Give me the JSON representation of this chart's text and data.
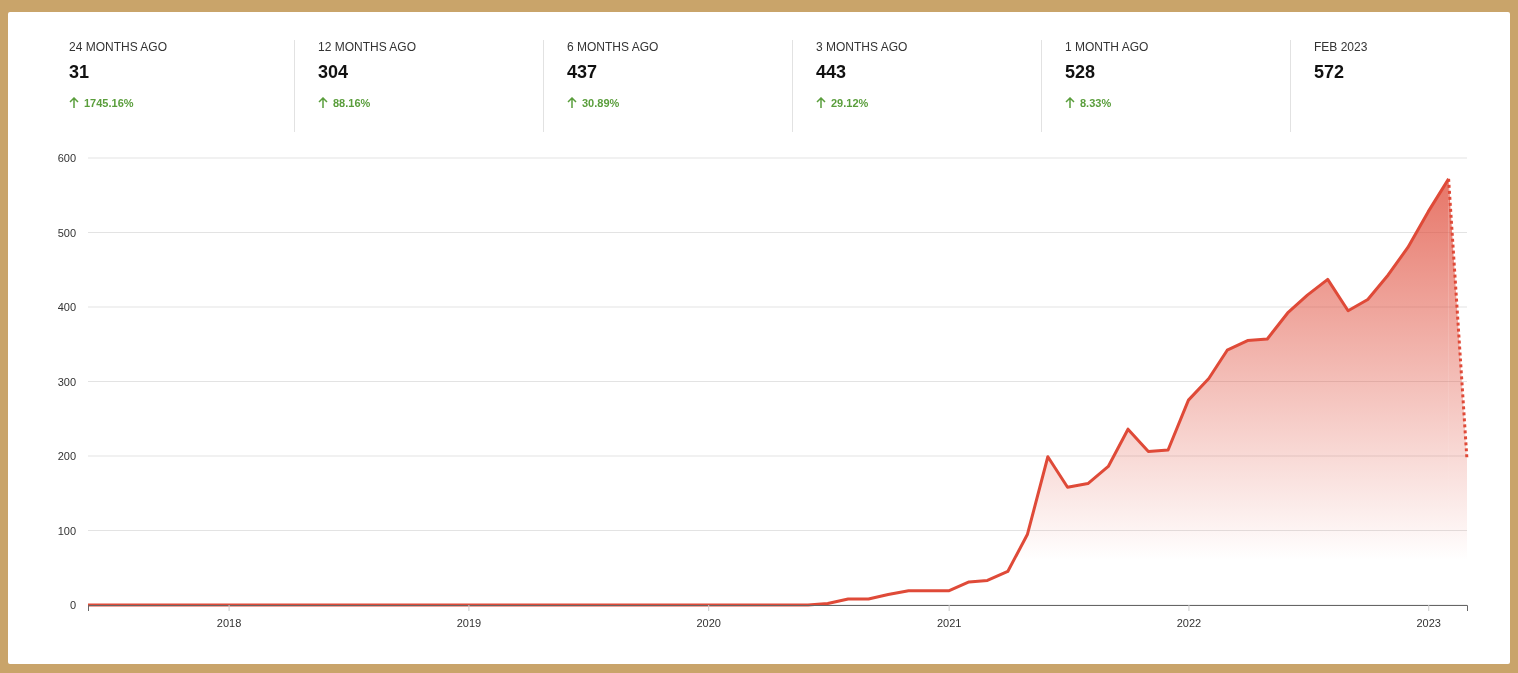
{
  "chart_data": [
    {
      "type": "other",
      "categories": [
        "24 MONTHS AGO",
        "12 MONTHS AGO",
        "6 MONTHS AGO",
        "3 MONTHS AGO",
        "1 MONTH AGO",
        "FEB 2023"
      ],
      "annotations": [
        "31",
        "304",
        "437",
        "443",
        "528",
        "572",
        "1745.16%",
        "88.16%",
        "30.89%",
        "29.12%",
        "8.33%"
      ],
      "color": "#5a9e3c"
    },
    {
      "type": "area",
      "xlim": [
        "2017-06",
        "2023-03"
      ],
      "xticks": [
        "2018",
        "2019",
        "2020",
        "2021",
        "2022",
        "2023"
      ],
      "ylim": [
        0,
        600
      ],
      "yticks": [
        0,
        100,
        200,
        300,
        400,
        500,
        600
      ],
      "grid": "y",
      "marker": "none",
      "series": [
        {
          "color": "#df4a38",
          "line_style": "solid",
          "x": [
            "2017-06",
            "2017-07",
            "2017-08",
            "2017-09",
            "2017-10",
            "2017-11",
            "2017-12",
            "2018-01",
            "2018-02",
            "2018-03",
            "2018-04",
            "2018-05",
            "2018-06",
            "2018-07",
            "2018-08",
            "2018-09",
            "2018-10",
            "2018-11",
            "2018-12",
            "2019-01",
            "2019-02",
            "2019-03",
            "2019-04",
            "2019-05",
            "2019-06",
            "2019-07",
            "2019-08",
            "2019-09",
            "2019-10",
            "2019-11",
            "2019-12",
            "2020-01",
            "2020-02",
            "2020-03",
            "2020-04",
            "2020-05",
            "2020-06",
            "2020-07",
            "2020-08",
            "2020-09",
            "2020-10",
            "2020-11",
            "2020-12",
            "2021-01",
            "2021-02",
            "2021-03",
            "2021-04",
            "2021-05",
            "2021-06",
            "2021-07",
            "2021-08",
            "2021-09",
            "2021-10",
            "2021-11",
            "2021-12",
            "2022-01",
            "2022-02",
            "2022-03",
            "2022-04",
            "2022-05",
            "2022-06",
            "2022-07",
            "2022-08",
            "2022-09",
            "2022-10",
            "2022-11",
            "2022-12",
            "2023-01",
            "2023-02"
          ],
          "values": [
            0,
            0,
            0,
            0,
            0,
            0,
            0,
            0,
            0,
            0,
            0,
            0,
            0,
            0,
            0,
            0,
            0,
            0,
            0,
            0,
            0,
            0,
            0,
            0,
            0,
            0,
            0,
            0,
            0,
            0,
            0,
            0,
            0,
            0,
            0,
            0,
            0,
            2,
            8,
            8,
            14,
            19,
            19,
            19,
            31,
            33,
            45,
            95,
            199,
            158,
            163,
            186,
            236,
            206,
            208,
            275,
            304,
            342,
            355,
            357,
            392,
            416,
            437,
            395,
            410,
            443,
            480,
            528,
            572
          ]
        },
        {
          "color": "#df4a38",
          "line_style": "dotted",
          "x": [
            "2023-02",
            "2023-03"
          ],
          "values": [
            572,
            195
          ]
        }
      ]
    }
  ]
}
